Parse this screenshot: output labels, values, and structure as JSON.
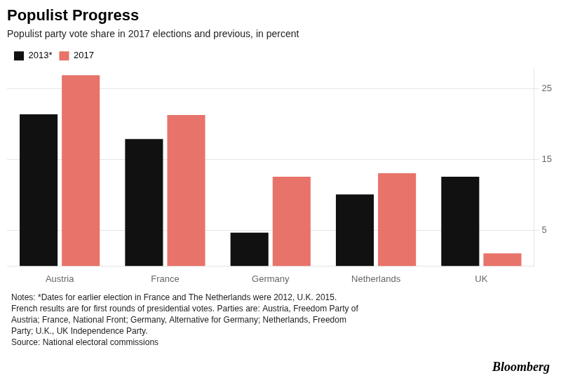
{
  "chart_data": {
    "type": "bar",
    "title": "Populist Progress",
    "subtitle": "Populist party vote share in 2017 elections and previous, in percent",
    "categories": [
      "Austria",
      "France",
      "Germany",
      "Netherlands",
      "UK"
    ],
    "series": [
      {
        "name": "2013*",
        "color": "#111111",
        "values": [
          21.4,
          17.9,
          4.7,
          10.1,
          12.6
        ]
      },
      {
        "name": "2017",
        "color": "#e8736a",
        "values": [
          26.9,
          21.3,
          12.6,
          13.1,
          1.8
        ]
      }
    ],
    "ylim": [
      0,
      28
    ],
    "yticks": [
      5,
      15,
      25
    ],
    "grid": true,
    "legend": "top left",
    "annotations": [
      "Notes: *Dates for earlier election in France and The Netherlands were 2012, U.K. 2015.",
      "French results are for first rounds of presidential votes. Parties are: Austria, Freedom Party of",
      "Austria; France, National Front; Germany, Alternative for Germany; Netherlands, Freedom",
      "Party; U.K., UK Independence Party.",
      "Source: National electoral commissions",
      "Bloomberg"
    ]
  }
}
